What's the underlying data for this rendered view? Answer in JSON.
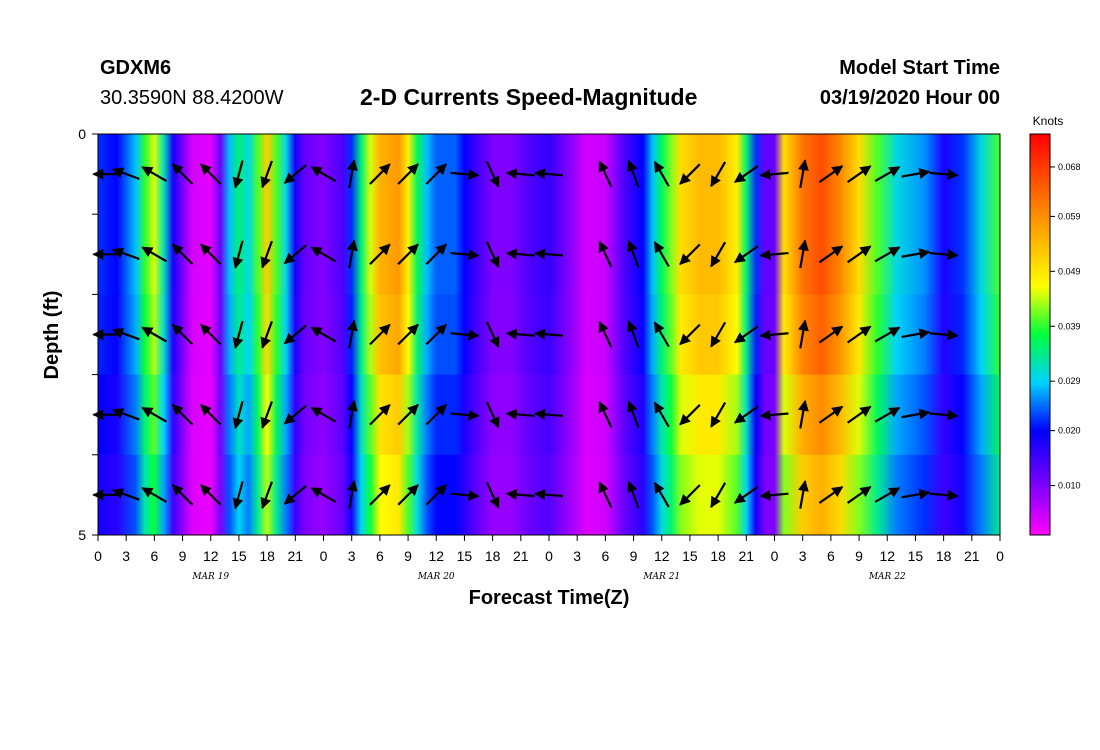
{
  "header": {
    "station": "GDXM6",
    "location": "30.3590N 88.4200W",
    "title": "2-D Currents Speed-Magnitude",
    "model_label": "Model Start Time",
    "model_time": "03/19/2020 Hour 00"
  },
  "chart_data": {
    "type": "heatmap",
    "title": "2-D Currents Speed-Magnitude",
    "xlabel": "Forecast Time(Z)",
    "ylabel": "Depth (ft)",
    "x_tick_labels": [
      "0",
      "3",
      "6",
      "9",
      "12",
      "15",
      "18",
      "21",
      "0",
      "3",
      "6",
      "9",
      "12",
      "15",
      "18",
      "21",
      "0",
      "3",
      "6",
      "9",
      "12",
      "15",
      "18",
      "21",
      "0",
      "3",
      "6",
      "9",
      "12",
      "15",
      "18",
      "21",
      "0"
    ],
    "x_range_hours": [
      0,
      96
    ],
    "date_labels": [
      {
        "label": "MAR 19",
        "hour": 12
      },
      {
        "label": "MAR 20",
        "hour": 36
      },
      {
        "label": "MAR 21",
        "hour": 60
      },
      {
        "label": "MAR 22",
        "hour": 84
      }
    ],
    "y_tick_labels": [
      "0",
      "5"
    ],
    "y_range": [
      0,
      5
    ],
    "colorbar": {
      "unit": "Knots",
      "min": 0.001,
      "max": 0.074,
      "ticks": [
        "0.010",
        "0.020",
        "0.029",
        "0.039",
        "0.049",
        "0.059",
        "0.068"
      ]
    },
    "speed_profile": [
      [
        0,
        0.022
      ],
      [
        2,
        0.02
      ],
      [
        4,
        0.028
      ],
      [
        5,
        0.039
      ],
      [
        6,
        0.045
      ],
      [
        7,
        0.032
      ],
      [
        8,
        0.018
      ],
      [
        10,
        0.004
      ],
      [
        12,
        0.003
      ],
      [
        13,
        0.012
      ],
      [
        14,
        0.028
      ],
      [
        15,
        0.035
      ],
      [
        16,
        0.03
      ],
      [
        17,
        0.04
      ],
      [
        18,
        0.052
      ],
      [
        19,
        0.04
      ],
      [
        20,
        0.03
      ],
      [
        21,
        0.018
      ],
      [
        22,
        0.012
      ],
      [
        24,
        0.01
      ],
      [
        26,
        0.014
      ],
      [
        27,
        0.022
      ],
      [
        28,
        0.035
      ],
      [
        29,
        0.045
      ],
      [
        30,
        0.055
      ],
      [
        32,
        0.058
      ],
      [
        33,
        0.048
      ],
      [
        34,
        0.036
      ],
      [
        35,
        0.028
      ],
      [
        36,
        0.024
      ],
      [
        38,
        0.024
      ],
      [
        39,
        0.02
      ],
      [
        40,
        0.016
      ],
      [
        42,
        0.01
      ],
      [
        44,
        0.01
      ],
      [
        46,
        0.014
      ],
      [
        48,
        0.016
      ],
      [
        50,
        0.01
      ],
      [
        52,
        0.004
      ],
      [
        54,
        0.005
      ],
      [
        56,
        0.014
      ],
      [
        58,
        0.02
      ],
      [
        59,
        0.028
      ],
      [
        60,
        0.036
      ],
      [
        61,
        0.042
      ],
      [
        62,
        0.05
      ],
      [
        64,
        0.054
      ],
      [
        66,
        0.054
      ],
      [
        68,
        0.048
      ],
      [
        69,
        0.035
      ],
      [
        70,
        0.022
      ],
      [
        71,
        0.012
      ],
      [
        72,
        0.012
      ],
      [
        73,
        0.05
      ],
      [
        75,
        0.062
      ],
      [
        77,
        0.066
      ],
      [
        79,
        0.06
      ],
      [
        81,
        0.05
      ],
      [
        83,
        0.04
      ],
      [
        85,
        0.03
      ],
      [
        88,
        0.026
      ],
      [
        90,
        0.018
      ],
      [
        92,
        0.022
      ],
      [
        94,
        0.03
      ],
      [
        96,
        0.04
      ]
    ],
    "depth_rows": [
      {
        "depth": 0.5,
        "factor": 1.0
      },
      {
        "depth": 1.5,
        "factor": 1.0
      },
      {
        "depth": 2.5,
        "factor": 0.97
      },
      {
        "depth": 3.5,
        "factor": 0.9
      },
      {
        "depth": 4.5,
        "factor": 0.84
      }
    ],
    "vectors": [
      {
        "hour": 1,
        "dir": 270
      },
      {
        "hour": 3,
        "dir": 290
      },
      {
        "hour": 6,
        "dir": 300
      },
      {
        "hour": 9,
        "dir": 315
      },
      {
        "hour": 12,
        "dir": 315
      },
      {
        "hour": 15,
        "dir": 195
      },
      {
        "hour": 18,
        "dir": 200
      },
      {
        "hour": 21,
        "dir": 230
      },
      {
        "hour": 24,
        "dir": 300
      },
      {
        "hour": 27,
        "dir": 10
      },
      {
        "hour": 30,
        "dir": 45
      },
      {
        "hour": 33,
        "dir": 45
      },
      {
        "hour": 36,
        "dir": 45
      },
      {
        "hour": 39,
        "dir": 95
      },
      {
        "hour": 42,
        "dir": 155
      },
      {
        "hour": 45,
        "dir": 275
      },
      {
        "hour": 48,
        "dir": 275
      },
      {
        "hour": 54,
        "dir": 335
      },
      {
        "hour": 57,
        "dir": 340
      },
      {
        "hour": 60,
        "dir": 330
      },
      {
        "hour": 63,
        "dir": 225
      },
      {
        "hour": 66,
        "dir": 210
      },
      {
        "hour": 69,
        "dir": 235
      },
      {
        "hour": 72,
        "dir": 265
      },
      {
        "hour": 75,
        "dir": 10
      },
      {
        "hour": 78,
        "dir": 55
      },
      {
        "hour": 81,
        "dir": 55
      },
      {
        "hour": 84,
        "dir": 60
      },
      {
        "hour": 87,
        "dir": 80
      },
      {
        "hour": 90,
        "dir": 95
      }
    ]
  }
}
